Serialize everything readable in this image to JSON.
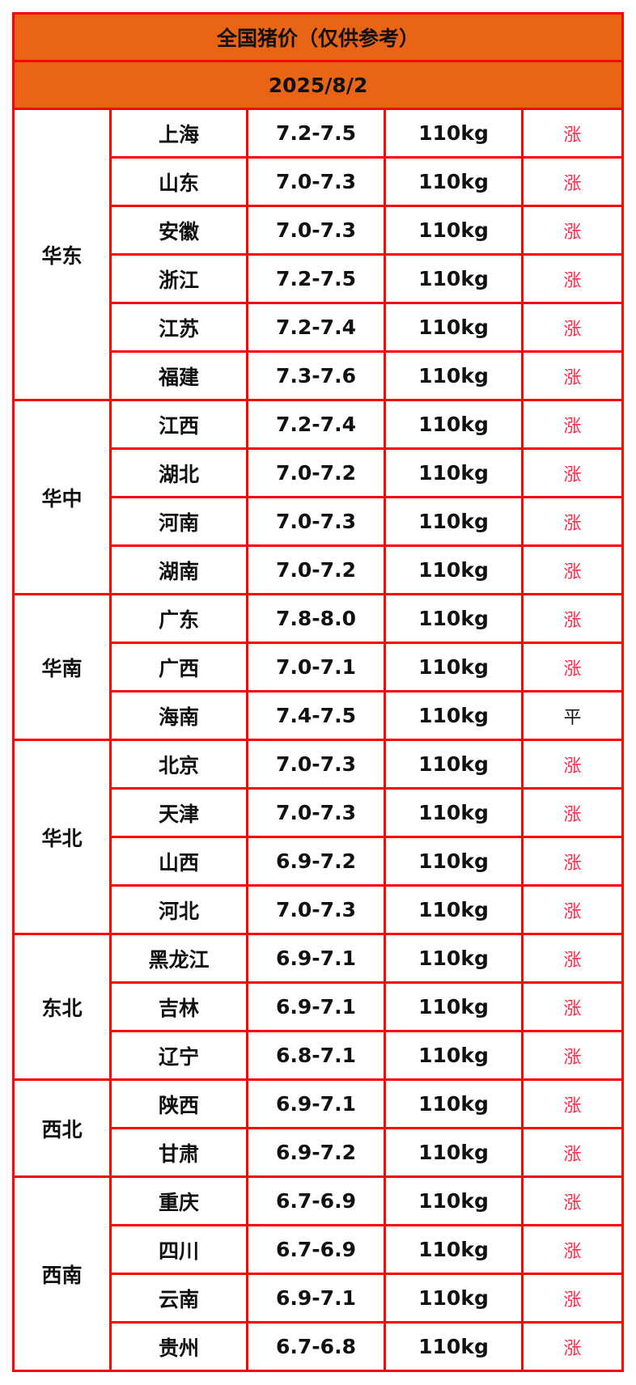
{
  "title": "全国猪价（仅供参考）",
  "date": "2025/8/2",
  "colors": {
    "header_bg": "#e96414",
    "border": "#ff0000",
    "rise": "#ff2a4a",
    "flat": "#111111"
  },
  "regions": [
    {
      "name": "华东",
      "rows": [
        {
          "province": "上海",
          "price": "7.2-7.5",
          "weight": "110kg",
          "trend": "涨"
        },
        {
          "province": "山东",
          "price": "7.0-7.3",
          "weight": "110kg",
          "trend": "涨"
        },
        {
          "province": "安徽",
          "price": "7.0-7.3",
          "weight": "110kg",
          "trend": "涨"
        },
        {
          "province": "浙江",
          "price": "7.2-7.5",
          "weight": "110kg",
          "trend": "涨"
        },
        {
          "province": "江苏",
          "price": "7.2-7.4",
          "weight": "110kg",
          "trend": "涨"
        },
        {
          "province": "福建",
          "price": "7.3-7.6",
          "weight": "110kg",
          "trend": "涨"
        }
      ]
    },
    {
      "name": "华中",
      "rows": [
        {
          "province": "江西",
          "price": "7.2-7.4",
          "weight": "110kg",
          "trend": "涨"
        },
        {
          "province": "湖北",
          "price": "7.0-7.2",
          "weight": "110kg",
          "trend": "涨"
        },
        {
          "province": "河南",
          "price": "7.0-7.3",
          "weight": "110kg",
          "trend": "涨"
        },
        {
          "province": "湖南",
          "price": "7.0-7.2",
          "weight": "110kg",
          "trend": "涨"
        }
      ]
    },
    {
      "name": "华南",
      "rows": [
        {
          "province": "广东",
          "price": "7.8-8.0",
          "weight": "110kg",
          "trend": "涨"
        },
        {
          "province": "广西",
          "price": "7.0-7.1",
          "weight": "110kg",
          "trend": "涨"
        },
        {
          "province": "海南",
          "price": "7.4-7.5",
          "weight": "110kg",
          "trend": "平"
        }
      ]
    },
    {
      "name": "华北",
      "rows": [
        {
          "province": "北京",
          "price": "7.0-7.3",
          "weight": "110kg",
          "trend": "涨"
        },
        {
          "province": "天津",
          "price": "7.0-7.3",
          "weight": "110kg",
          "trend": "涨"
        },
        {
          "province": "山西",
          "price": "6.9-7.2",
          "weight": "110kg",
          "trend": "涨"
        },
        {
          "province": "河北",
          "price": "7.0-7.3",
          "weight": "110kg",
          "trend": "涨"
        }
      ]
    },
    {
      "name": "东北",
      "rows": [
        {
          "province": "黑龙江",
          "price": "6.9-7.1",
          "weight": "110kg",
          "trend": "涨"
        },
        {
          "province": "吉林",
          "price": "6.9-7.1",
          "weight": "110kg",
          "trend": "涨"
        },
        {
          "province": "辽宁",
          "price": "6.8-7.1",
          "weight": "110kg",
          "trend": "涨"
        }
      ]
    },
    {
      "name": "西北",
      "rows": [
        {
          "province": "陕西",
          "price": "6.9-7.1",
          "weight": "110kg",
          "trend": "涨"
        },
        {
          "province": "甘肃",
          "price": "6.9-7.2",
          "weight": "110kg",
          "trend": "涨"
        }
      ]
    },
    {
      "name": "西南",
      "rows": [
        {
          "province": "重庆",
          "price": "6.7-6.9",
          "weight": "110kg",
          "trend": "涨"
        },
        {
          "province": "四川",
          "price": "6.7-6.9",
          "weight": "110kg",
          "trend": "涨"
        },
        {
          "province": "云南",
          "price": "6.9-7.1",
          "weight": "110kg",
          "trend": "涨"
        },
        {
          "province": "贵州",
          "price": "6.7-6.8",
          "weight": "110kg",
          "trend": "涨"
        }
      ]
    }
  ]
}
